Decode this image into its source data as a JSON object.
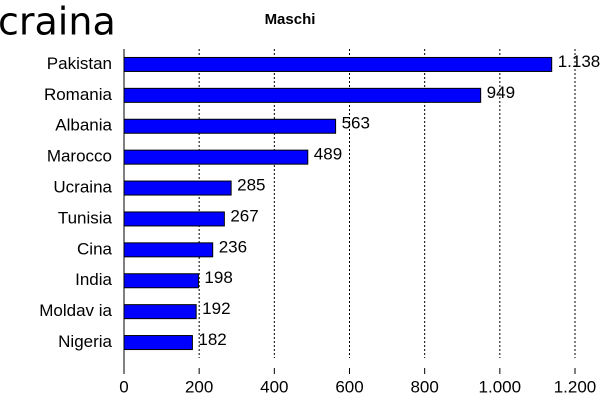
{
  "chart_data": {
    "type": "bar",
    "orientation": "horizontal",
    "title": "Maschi",
    "annotation": "craina",
    "categories": [
      "Pakistan",
      "Romania",
      "Albania",
      "Marocco",
      "Ucraina",
      "Tunisia",
      "Cina",
      "India",
      "Moldav ia",
      "Nigeria"
    ],
    "values": [
      1138,
      949,
      563,
      489,
      285,
      267,
      236,
      198,
      192,
      182
    ],
    "value_labels": [
      "1.138",
      "949",
      "563",
      "489",
      "285",
      "267",
      "236",
      "198",
      "192",
      "182"
    ],
    "color": "#0000ff",
    "xlim": [
      0,
      1200
    ],
    "xticks": [
      0,
      200,
      400,
      600,
      800,
      {
        "value": 1000,
        "label": "1.000"
      },
      {
        "value": 1200,
        "label": "1.200"
      }
    ],
    "grid": true
  }
}
